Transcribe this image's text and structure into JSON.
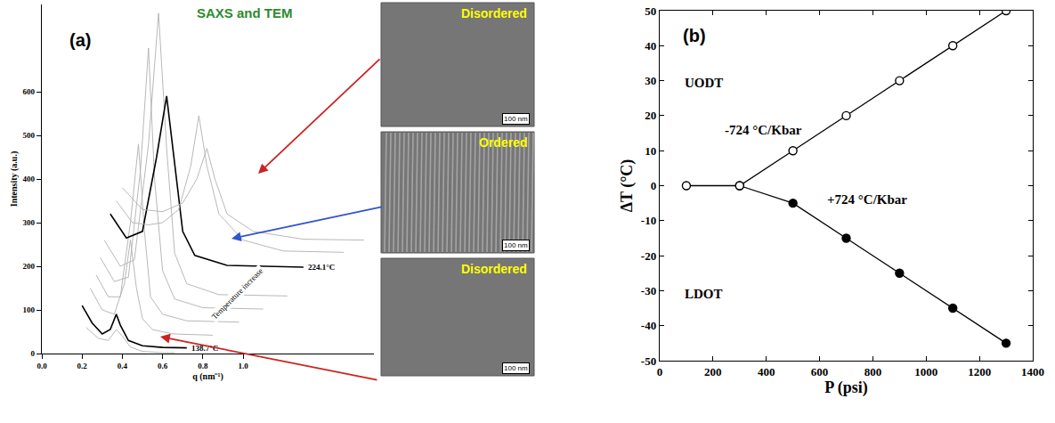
{
  "chart_data": [
    {
      "type": "line",
      "panel": "(a)",
      "title": "SAXS and TEM",
      "x_label": "q (nm⁻¹)",
      "y_label": "Intensity (a.u.)",
      "xlim": [
        0,
        1.65
      ],
      "xticks": [
        {
          "value": 0,
          "label": "0.0"
        },
        0.2,
        0.4,
        0.6,
        0.8,
        {
          "value": 1,
          "label": "1.0"
        }
      ],
      "ylim": [
        0,
        800
      ],
      "yticks": [
        0,
        100,
        200,
        300,
        400,
        500,
        600
      ],
      "grid": false,
      "series": [
        {
          "color": "#b0b0b0",
          "x": [
            0.22,
            0.28,
            0.33,
            0.37,
            0.4,
            0.44,
            0.5,
            0.6,
            0.66
          ],
          "values": [
            60,
            35,
            30,
            55,
            40,
            15,
            5,
            2,
            2
          ]
        },
        {
          "name": "138.7°C",
          "color": "#000000",
          "x": [
            0.2,
            0.25,
            0.3,
            0.34,
            0.37,
            0.39,
            0.43,
            0.5,
            0.6,
            0.72
          ],
          "values": [
            110,
            70,
            45,
            55,
            90,
            65,
            30,
            18,
            14,
            13
          ]
        },
        {
          "color": "#b0b0b0",
          "x": [
            0.24,
            0.3,
            0.36,
            0.41,
            0.44,
            0.47,
            0.5,
            0.55,
            0.65,
            0.85
          ],
          "values": [
            150,
            100,
            90,
            160,
            260,
            150,
            80,
            55,
            45,
            42
          ]
        },
        {
          "color": "#b0b0b0",
          "x": [
            0.27,
            0.33,
            0.39,
            0.44,
            0.48,
            0.51,
            0.54,
            0.6,
            0.72,
            0.98
          ],
          "values": [
            180,
            130,
            130,
            300,
            480,
            280,
            130,
            90,
            75,
            72
          ]
        },
        {
          "color": "#b0b0b0",
          "x": [
            0.29,
            0.36,
            0.43,
            0.49,
            0.53,
            0.56,
            0.6,
            0.66,
            0.8,
            1.1
          ],
          "values": [
            220,
            165,
            175,
            420,
            700,
            400,
            190,
            125,
            105,
            102
          ]
        },
        {
          "color": "#b0b0b0",
          "x": [
            0.31,
            0.39,
            0.46,
            0.53,
            0.58,
            0.62,
            0.66,
            0.72,
            0.88,
            1.22
          ],
          "values": [
            260,
            200,
            215,
            480,
            780,
            470,
            230,
            160,
            135,
            132
          ]
        },
        {
          "name": "224.1°C",
          "color": "#000000",
          "x": [
            0.34,
            0.42,
            0.5,
            0.57,
            0.62,
            0.66,
            0.7,
            0.76,
            0.92,
            1.3
          ],
          "values": [
            320,
            265,
            280,
            450,
            590,
            430,
            280,
            225,
            202,
            198
          ]
        },
        {
          "color": "#b0b0b0",
          "x": [
            0.37,
            0.45,
            0.53,
            0.6,
            0.68,
            0.74,
            0.78,
            0.82,
            0.88,
            1.0,
            1.2,
            1.5
          ],
          "values": [
            350,
            300,
            295,
            300,
            330,
            430,
            545,
            430,
            320,
            260,
            235,
            232
          ]
        },
        {
          "color": "#b0b0b0",
          "x": [
            0.4,
            0.5,
            0.6,
            0.7,
            0.77,
            0.82,
            0.86,
            0.92,
            1.05,
            1.3,
            1.6
          ],
          "values": [
            380,
            330,
            325,
            345,
            400,
            470,
            400,
            320,
            280,
            262,
            260
          ]
        }
      ],
      "annotations": [
        {
          "text": "Temperature increase",
          "x": 0.97,
          "y": 137
        }
      ]
    },
    {
      "type": "line",
      "panel": "(b)",
      "x_label": "P (psi)",
      "y_label": "ΔT (°C)",
      "xlim": [
        0,
        1400
      ],
      "xticks": [
        0,
        200,
        400,
        600,
        800,
        1000,
        1200,
        1400
      ],
      "ylim": [
        -50,
        50
      ],
      "yticks": [
        -50,
        -40,
        -30,
        -20,
        -10,
        0,
        10,
        20,
        30,
        40,
        50
      ],
      "grid": false,
      "series": [
        {
          "color": "#000000",
          "marker": "filled circle",
          "x": [
            300,
            500,
            700,
            900,
            1100,
            1300
          ],
          "values": [
            0,
            -5,
            -15,
            -25,
            -35,
            -45
          ]
        },
        {
          "color": "#000000",
          "marker": "open circle",
          "x": [
            100,
            300,
            500,
            700,
            900,
            1100,
            1300
          ],
          "values": [
            0,
            0,
            10,
            20,
            30,
            40,
            50
          ]
        }
      ],
      "annotations": [
        {
          "text": "UODT",
          "x": 165,
          "y": 29.5
        },
        {
          "text": "-724 °C/Kbar",
          "x": 390,
          "y": 16
        },
        {
          "text": "+724 °C/Kbar",
          "x": 780,
          "y": -4
        },
        {
          "text": "LDOT",
          "x": 165,
          "y": -31
        }
      ]
    }
  ],
  "tem_images": [
    {
      "label": "Disordered",
      "scale_bar": "100 nm"
    },
    {
      "label": "Ordered",
      "scale_bar": "100 nm"
    },
    {
      "label": "Disordered",
      "scale_bar": "100 nm"
    }
  ]
}
